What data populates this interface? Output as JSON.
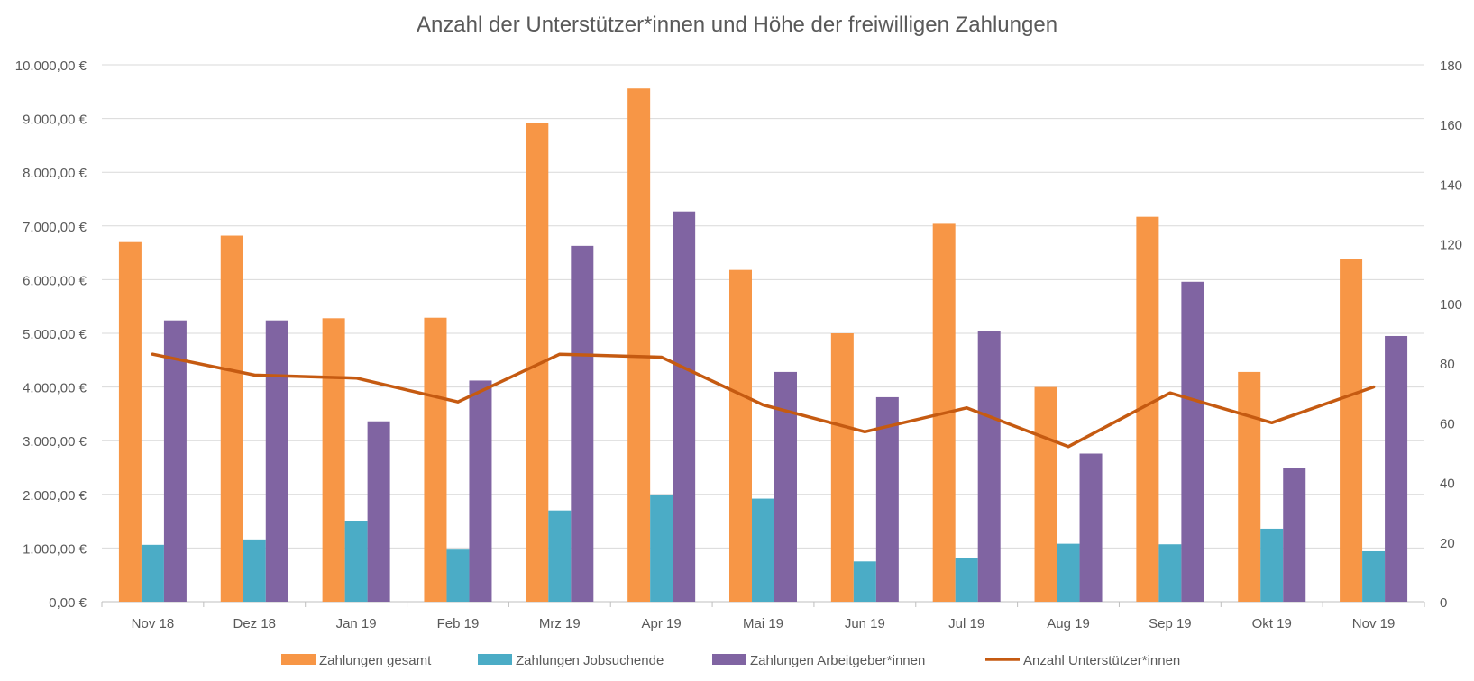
{
  "chart_data": {
    "type": "bar",
    "title": "Anzahl der Unterstützer*innen und Höhe der freiwilligen Zahlungen",
    "categories": [
      "Nov 18",
      "Dez 18",
      "Jan 19",
      "Feb 19",
      "Mrz 19",
      "Apr 19",
      "Mai 19",
      "Jun 19",
      "Jul 19",
      "Aug 19",
      "Sep 19",
      "Okt 19",
      "Nov 19"
    ],
    "y_left": {
      "ylim": [
        0,
        10000
      ],
      "ticks": [
        "0,00 €",
        "1.000,00 €",
        "2.000,00 €",
        "3.000,00 €",
        "4.000,00 €",
        "5.000,00 €",
        "6.000,00 €",
        "7.000,00 €",
        "8.000,00 €",
        "9.000,00 €",
        "10.000,00 €"
      ]
    },
    "y_right": {
      "ylim": [
        0,
        180
      ],
      "ticks": [
        "0",
        "20",
        "40",
        "60",
        "80",
        "100",
        "120",
        "140",
        "160",
        "180"
      ]
    },
    "series": [
      {
        "name": "Zahlungen gesamt",
        "type": "bar",
        "axis": "left",
        "color": "#F79646",
        "values": [
          6700,
          6820,
          5280,
          5290,
          8920,
          9560,
          6180,
          5000,
          7040,
          4000,
          7170,
          4280,
          6380
        ]
      },
      {
        "name": "Zahlungen Jobsuchende",
        "type": "bar",
        "axis": "left",
        "color": "#4BACC6",
        "values": [
          1060,
          1160,
          1510,
          970,
          1700,
          1990,
          1920,
          750,
          810,
          1080,
          1070,
          1360,
          940
        ]
      },
      {
        "name": "Zahlungen Arbeitgeber*innen",
        "type": "bar",
        "axis": "left",
        "color": "#8064A2",
        "values": [
          5240,
          5240,
          3360,
          4120,
          6630,
          7270,
          4280,
          3810,
          5040,
          2760,
          5960,
          2500,
          4950
        ]
      },
      {
        "name": "Anzahl Unterstützer*innen",
        "type": "line",
        "axis": "right",
        "color": "#C55A11",
        "values": [
          83,
          76,
          75,
          67,
          83,
          82,
          66,
          57,
          65,
          52,
          70,
          60,
          72
        ]
      }
    ],
    "grid": true,
    "legend_position": "bottom"
  }
}
